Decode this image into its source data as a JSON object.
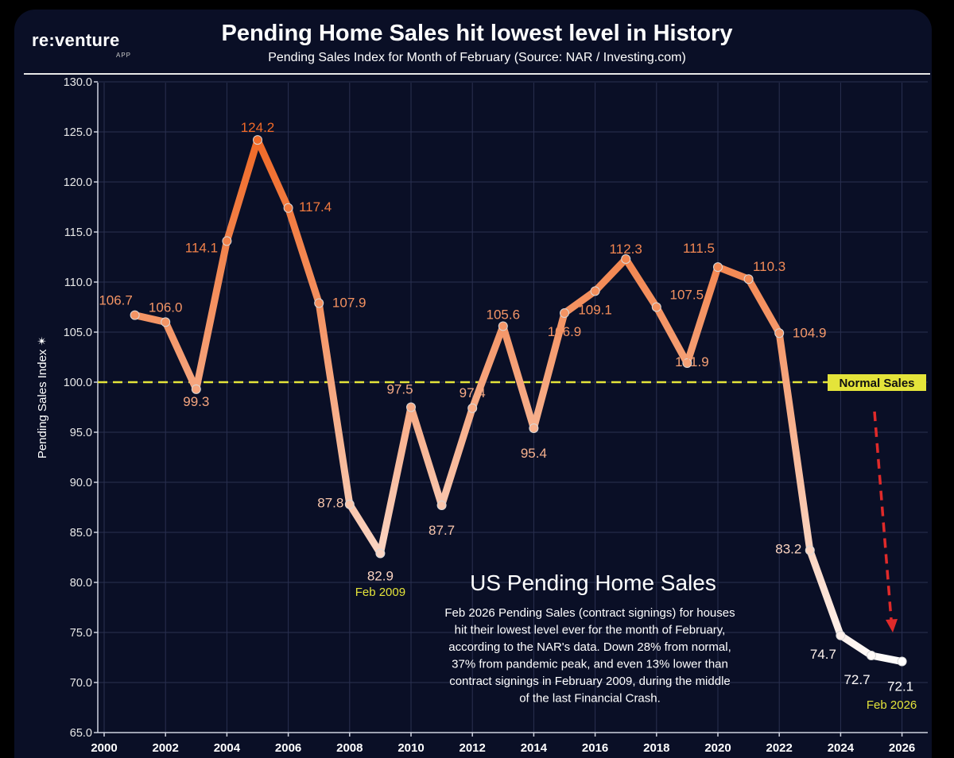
{
  "logo": {
    "brand": "re:venture",
    "sub": "APP"
  },
  "header": {
    "title": "Pending Home Sales hit lowest level in History",
    "subtitle": "Pending Sales Index for Month of February (Source: NAR / Investing.com)"
  },
  "chart_data": {
    "type": "line",
    "title": "Pending Home Sales hit lowest level in History",
    "subtitle": "Pending Sales Index for Month of February (Source: NAR / Investing.com)",
    "xlabel": "",
    "ylabel": "Pending Sales Index",
    "ylim": [
      65,
      130
    ],
    "xlim": [
      2000,
      2026.5
    ],
    "yticks": [
      "65.0",
      "70.0",
      "75.0",
      "80.0",
      "85.0",
      "90.0",
      "95.0",
      "100.0",
      "105.0",
      "110.0",
      "115.0",
      "120.0",
      "125.0",
      "130.0"
    ],
    "xticks": [
      "2000",
      "2002",
      "2004",
      "2006",
      "2008",
      "2010",
      "2012",
      "2014",
      "2016",
      "2018",
      "2020",
      "2022",
      "2024",
      "2026"
    ],
    "grid": true,
    "series": [
      {
        "name": "Pending Sales Index (February)",
        "x": [
          2001,
          2002,
          2003,
          2004,
          2005,
          2006,
          2007,
          2008,
          2009,
          2010,
          2011,
          2012,
          2013,
          2014,
          2015,
          2016,
          2017,
          2018,
          2019,
          2020,
          2021,
          2022,
          2023,
          2024,
          2025,
          2026
        ],
        "values": [
          106.7,
          106.0,
          99.3,
          114.1,
          124.2,
          117.4,
          107.9,
          87.8,
          82.9,
          97.5,
          87.7,
          97.4,
          105.6,
          95.4,
          106.9,
          109.1,
          112.3,
          107.5,
          101.9,
          111.5,
          110.3,
          104.9,
          83.2,
          74.7,
          72.7,
          72.1
        ],
        "labels": [
          "106.7",
          "106.0",
          "99.3",
          "114.1",
          "124.2",
          "117.4",
          "107.9",
          "87.8",
          "82.9",
          "97.5",
          "87.7",
          "97.4",
          "105.6",
          "95.4",
          "106.9",
          "109.1",
          "112.3",
          "107.5",
          "101.9",
          "111.5",
          "110.3",
          "104.9",
          "83.2",
          "74.7",
          "72.7",
          "72.1"
        ]
      }
    ],
    "reference_line": {
      "value": 100,
      "label": "Normal Sales",
      "color": "#e4e43a"
    },
    "annotations": [
      {
        "text": "Feb 2009",
        "x": 2009,
        "color": "#e4e43a"
      },
      {
        "text": "Feb 2026",
        "x": 2026,
        "color": "#e4e43a"
      }
    ],
    "callout": {
      "heading": "US Pending Home Sales",
      "lines": [
        "Feb 2026 Pending Sales (contract signings) for houses",
        "hit their lowest level ever for the month of February,",
        "according to the NAR's data. Down 28% from normal,",
        "37% from pandemic peak, and even 13% lower than",
        "contract signings in February 2009, during the middle",
        "of the last Financial Crash."
      ]
    },
    "colors": {
      "background": "#0a0f26",
      "high": "#f06a28",
      "low": "#ffffff",
      "arrow": "#e02a2a",
      "grid": "#2a3050"
    }
  }
}
